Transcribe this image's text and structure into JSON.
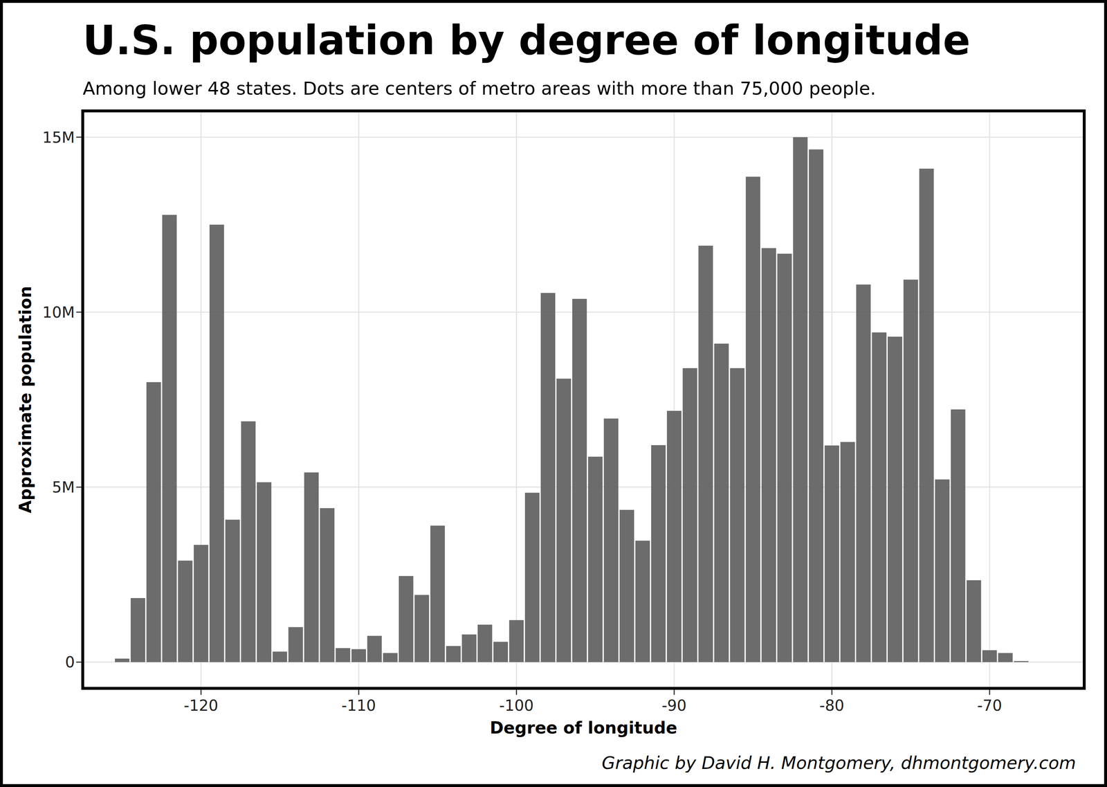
{
  "chart_data": {
    "type": "bar",
    "title": "U.S. population by degree of longitude",
    "subtitle": "Among lower 48 states. Dots are centers of metro areas with more than 75,000 people.",
    "x_label": "Degree of longitude",
    "y_label": "Approximate population",
    "credit": "Graphic by David H. Montgomery, dhmontgomery.com",
    "x": [
      -125,
      -124,
      -123,
      -122,
      -121,
      -120,
      -119,
      -118,
      -117,
      -116,
      -115,
      -114,
      -113,
      -112,
      -111,
      -110,
      -109,
      -108,
      -107,
      -106,
      -105,
      -104,
      -103,
      -102,
      -101,
      -100,
      -99,
      -98,
      -97,
      -96,
      -95,
      -94,
      -93,
      -92,
      -91,
      -90,
      -89,
      -88,
      -87,
      -86,
      -85,
      -84,
      -83,
      -82,
      -81,
      -80,
      -79,
      -78,
      -77,
      -76,
      -75,
      -74,
      -73,
      -72,
      -71,
      -70,
      -69,
      -68
    ],
    "values": [
      100000,
      1830000,
      8000000,
      12780000,
      2900000,
      3350000,
      12500000,
      4070000,
      6880000,
      5140000,
      300000,
      1000000,
      5420000,
      4400000,
      400000,
      370000,
      750000,
      260000,
      2460000,
      1920000,
      3900000,
      460000,
      790000,
      1070000,
      580000,
      1200000,
      4840000,
      10550000,
      8100000,
      10380000,
      5870000,
      6960000,
      4350000,
      3470000,
      6200000,
      7180000,
      8400000,
      11900000,
      9100000,
      8400000,
      13870000,
      11830000,
      11670000,
      15000000,
      14650000,
      6190000,
      6290000,
      10790000,
      9420000,
      9300000,
      10930000,
      14100000,
      5220000,
      7220000,
      2340000,
      340000,
      260000,
      30000
    ],
    "color": "#5f5f5f",
    "xlim": [
      -127.5,
      -64
    ],
    "ylim": [
      -750000,
      15750000
    ],
    "xticks": [
      -120,
      -110,
      -100,
      -90,
      -80,
      -70
    ],
    "yticks": [
      0,
      {
        "value": 5000000,
        "label": "5M"
      },
      {
        "value": 10000000,
        "label": "10M"
      },
      {
        "value": 15000000,
        "label": "15M"
      }
    ],
    "grid": true
  }
}
